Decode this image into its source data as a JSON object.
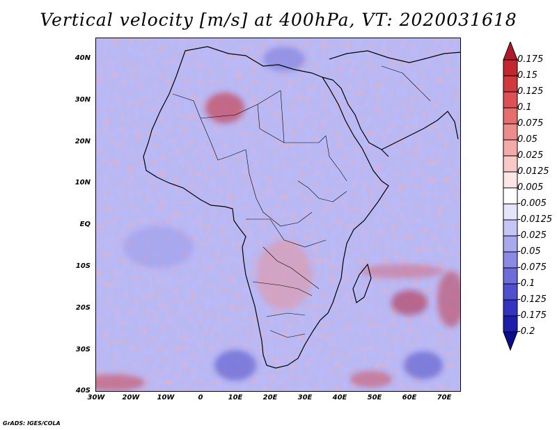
{
  "title": "Vertical velocity [m/s] at 400hPa, VT: 2020031618",
  "credit": "GrADS: IGES/COLA",
  "map": {
    "variable": "Vertical velocity",
    "units": "m/s",
    "level": "400hPa",
    "valid_time": "2020031618",
    "lon_range": [
      -30,
      75
    ],
    "lat_range": [
      -40,
      45
    ]
  },
  "lat_labels": [
    "40N",
    "30N",
    "20N",
    "10N",
    "EQ",
    "10S",
    "20S",
    "30S",
    "40S"
  ],
  "lon_labels": [
    "30W",
    "20W",
    "10W",
    "0",
    "10E",
    "20E",
    "30E",
    "40E",
    "50E",
    "60E",
    "70E"
  ],
  "colorbar": {
    "labels": [
      "0.175",
      "0.15",
      "0.125",
      "0.1",
      "0.075",
      "0.05",
      "0.025",
      "0.0125",
      "0.005",
      "-0.005",
      "-0.0125",
      "-0.025",
      "-0.05",
      "-0.075",
      "-0.1",
      "-0.125",
      "-0.175",
      "-0.2"
    ],
    "colors": [
      "#b2182b",
      "#c1272d",
      "#d0393e",
      "#dd5154",
      "#e66e6e",
      "#ee8c8b",
      "#f4aaa8",
      "#f9c9c7",
      "#fde6e5",
      "#ffffff",
      "#e4e4fb",
      "#c6c6f6",
      "#a8a8ef",
      "#8a8ae6",
      "#6c6cdb",
      "#4f4fcf",
      "#3333c0",
      "#1e1eaa",
      "#0b0b90"
    ]
  }
}
